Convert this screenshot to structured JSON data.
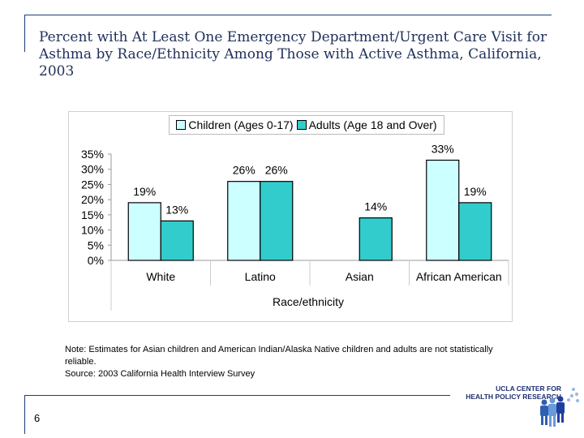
{
  "slide": {
    "title": "Percent with At Least One Emergency Department/Urgent Care Visit for Asthma by Race/Ethnicity Among Those with Active Asthma, California, 2003",
    "note_line1": "Note: Estimates for Asian children and American Indian/Alaska Native children and adults are not statistically reliable.",
    "note_line2": "Source: 2003 California Health Interview Survey",
    "page_number": "6",
    "logo_text": [
      "UCLA CENTER FOR",
      "HEALTH POLICY RESEARCH"
    ]
  },
  "chart_data": {
    "type": "bar",
    "title": "",
    "xlabel": "Race/ethnicity",
    "ylabel": "",
    "categories": [
      "White",
      "Latino",
      "Asian",
      "African American"
    ],
    "series": [
      {
        "name": "Children (Ages 0-17)",
        "values": [
          19,
          26,
          null,
          33
        ],
        "color": "#ccffff"
      },
      {
        "name": "Adults (Age 18 and Over)",
        "values": [
          13,
          26,
          14,
          19
        ],
        "color": "#33cccc"
      }
    ],
    "data_labels": [
      [
        "19%",
        "26%",
        "",
        "33%"
      ],
      [
        "13%",
        "26%",
        "14%",
        "19%"
      ]
    ],
    "yticks": [
      "0%",
      "5%",
      "10%",
      "15%",
      "20%",
      "25%",
      "30%",
      "35%"
    ],
    "ylim": [
      0,
      35
    ],
    "grid": false,
    "legend": "top"
  }
}
